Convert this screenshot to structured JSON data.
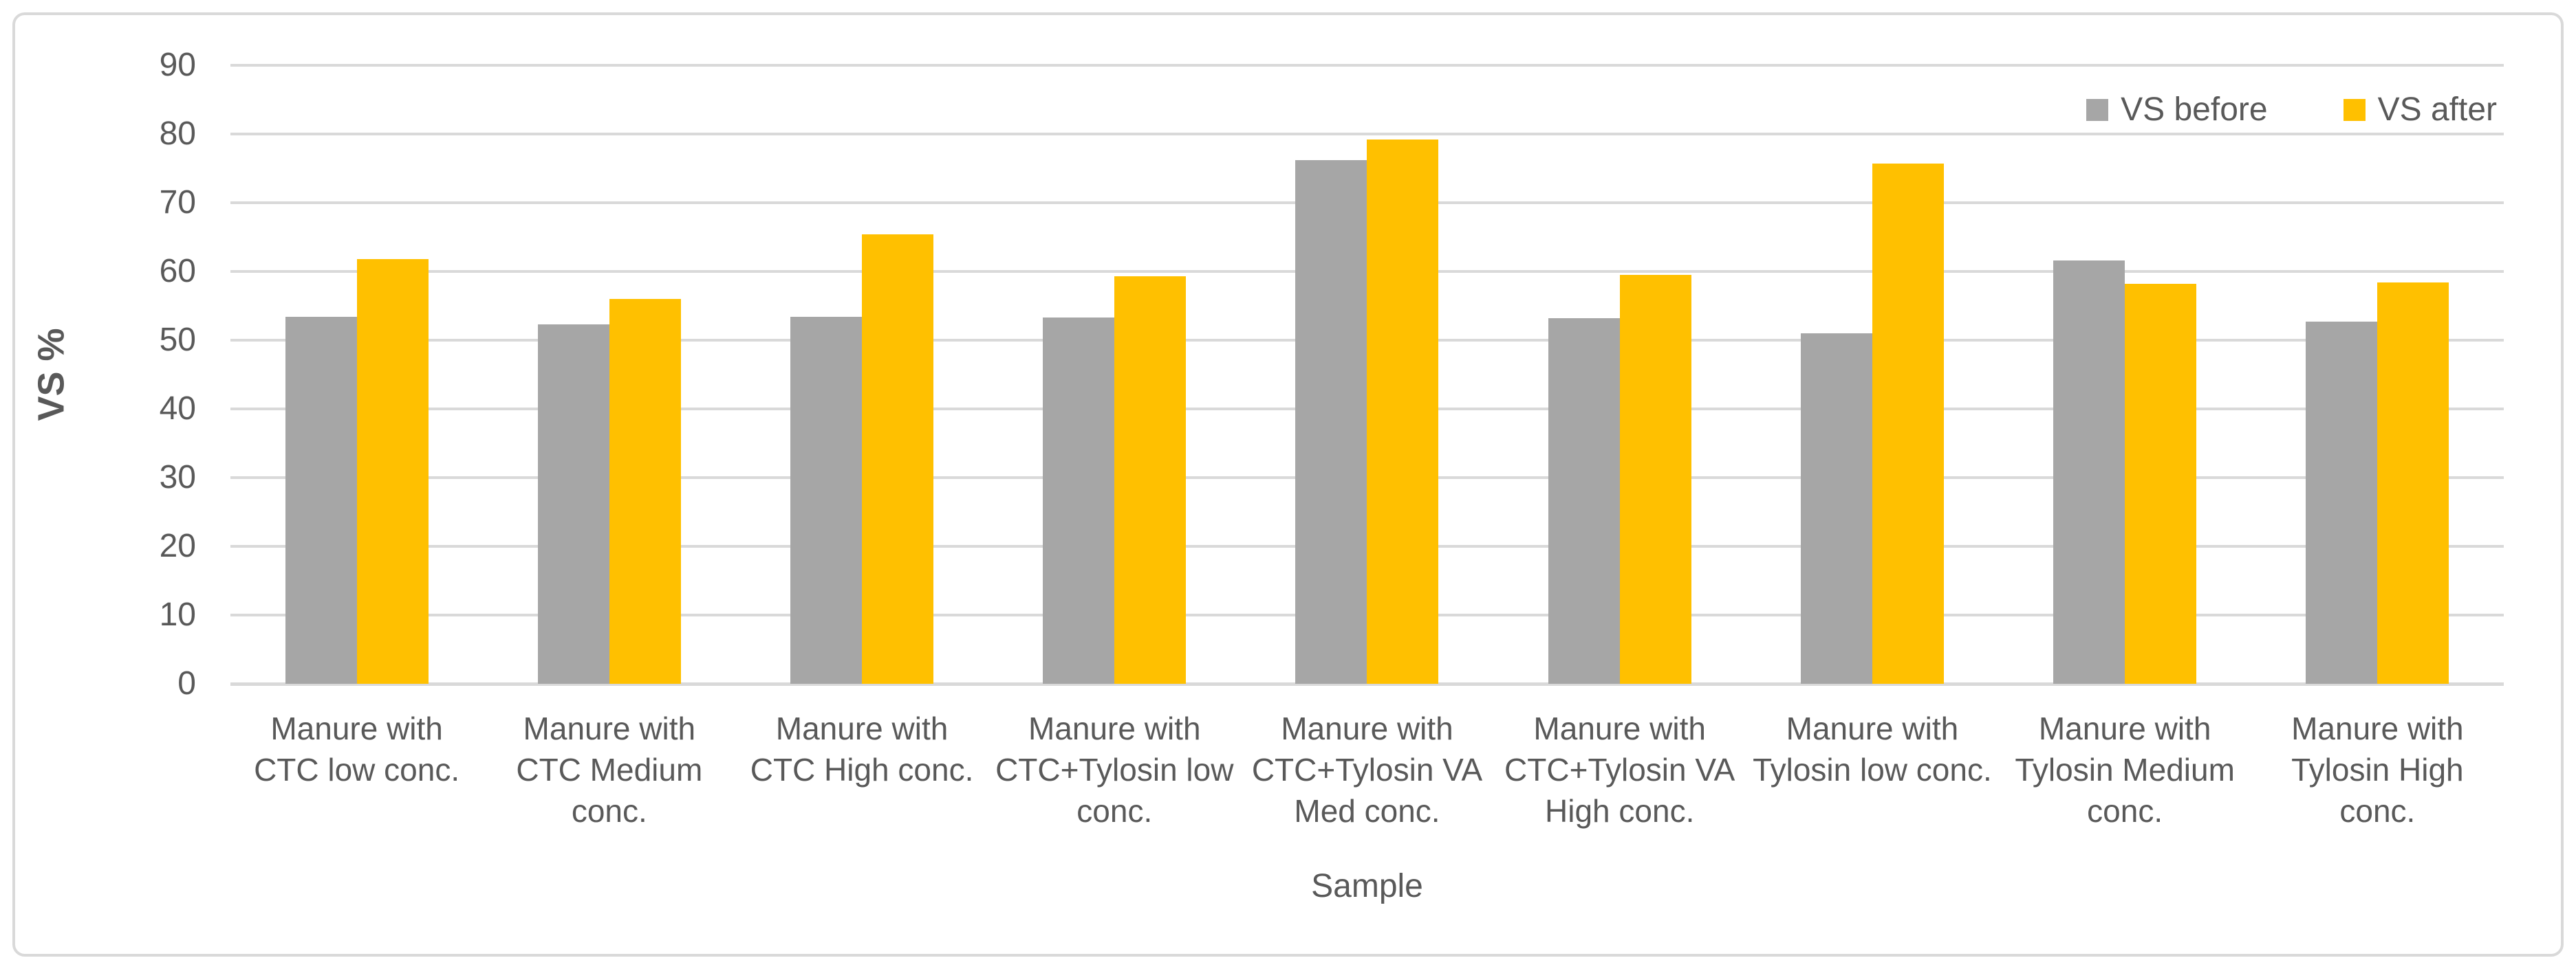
{
  "chart_data": {
    "type": "bar",
    "title": "",
    "xlabel": "Sample",
    "ylabel": "VS %",
    "ylim": [
      0,
      90
    ],
    "yticks": [
      0,
      10,
      20,
      30,
      40,
      50,
      60,
      70,
      80,
      90
    ],
    "grid": true,
    "legend_position": "top-right",
    "categories": [
      "Manure with CTC low conc.",
      "Manure with CTC Medium conc.",
      "Manure with CTC High conc.",
      "Manure with CTC+Tylosin low conc.",
      "Manure with CTC+Tylosin VA Med conc.",
      "Manure with CTC+Tylosin VA High conc.",
      "Manure with Tylosin low conc.",
      "Manure with Tylosin Medium conc.",
      "Manure with Tylosin High conc."
    ],
    "series": [
      {
        "name": "VS before",
        "color": "#a6a6a6",
        "values": [
          53.4,
          52.3,
          53.4,
          53.3,
          76.2,
          53.2,
          51.0,
          61.6,
          52.7
        ]
      },
      {
        "name": "VS after",
        "color": "#ffc000",
        "values": [
          61.8,
          56.0,
          65.4,
          59.3,
          79.2,
          59.5,
          75.7,
          58.2,
          58.4
        ]
      }
    ],
    "colors": {
      "gridline": "#d9d9d9",
      "axis_line": "#d9d9d9",
      "text": "#595959",
      "frame_border": "#d9d9d9",
      "background": "#ffffff"
    }
  }
}
